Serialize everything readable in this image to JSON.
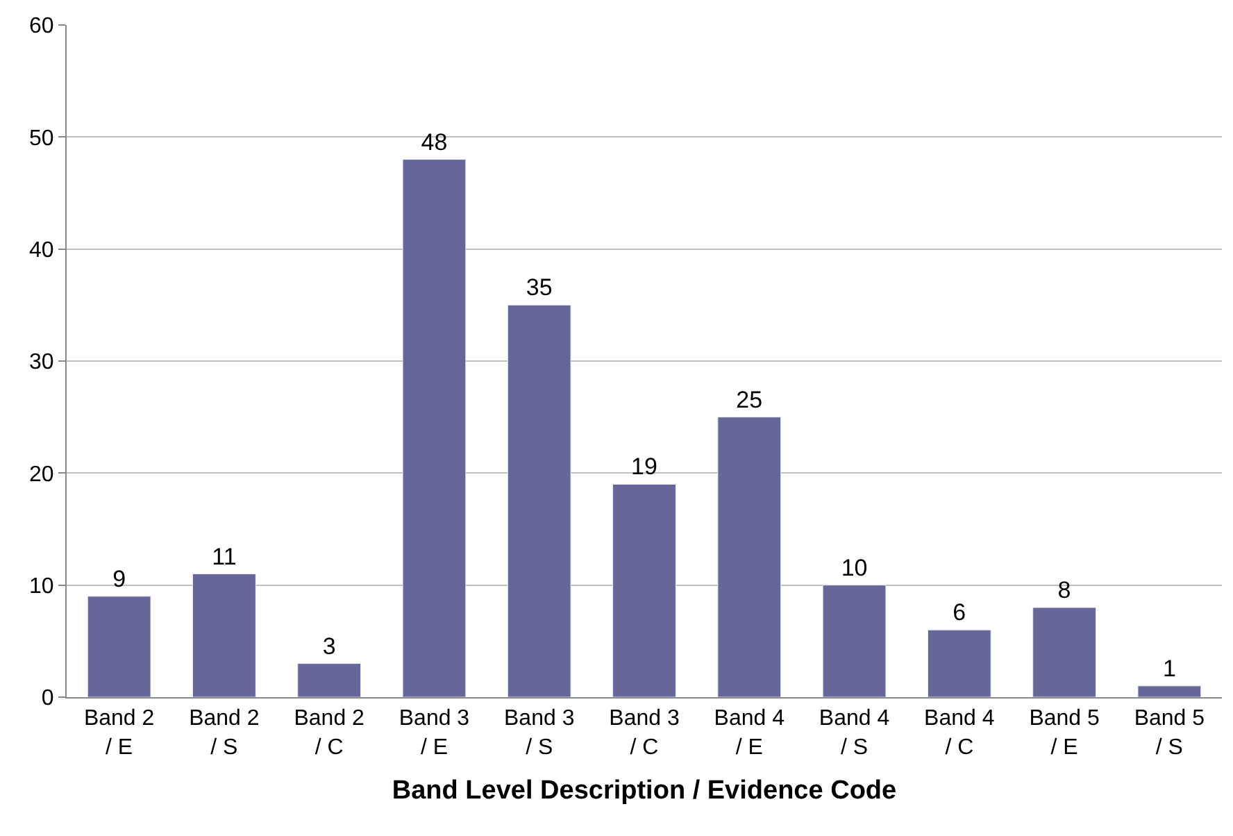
{
  "chart_data": {
    "type": "bar",
    "xlabel": "Band Level Description / Evidence Code",
    "categories": [
      "Band 2\n/ E",
      "Band 2\n/ S",
      "Band 2\n/ C",
      "Band 3\n/ E",
      "Band 3\n/ S",
      "Band 3\n/ C",
      "Band 4\n/ E",
      "Band 4\n/ S",
      "Band 4\n/ C",
      "Band 5\n/ E",
      "Band 5\n/ S"
    ],
    "values": [
      9,
      11,
      3,
      48,
      35,
      19,
      25,
      10,
      6,
      8,
      1
    ],
    "color": "#666699",
    "ylim": [
      0,
      60
    ],
    "yticks": [
      0,
      10,
      20,
      30,
      40,
      50,
      60
    ],
    "grid": "y",
    "data_labels": true,
    "legend": false
  }
}
